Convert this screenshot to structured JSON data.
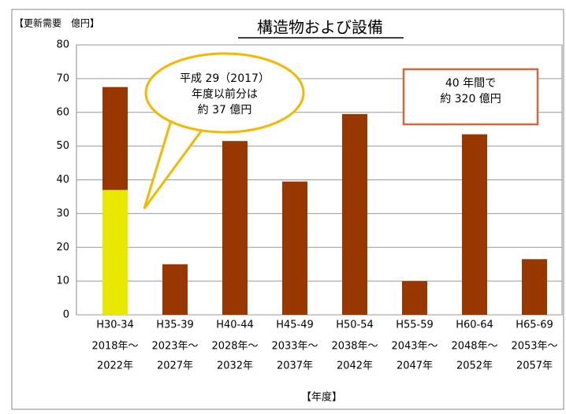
{
  "chart_data": {
    "type": "stacked_bar",
    "title": "構造物および設備",
    "y_axis_label": "【更新需要　億円】",
    "x_axis_label": "【年度】",
    "categories": [
      [
        "H30-34",
        "2018年～",
        "2022年"
      ],
      [
        "H35-39",
        "2023年～",
        "2027年"
      ],
      [
        "H40-44",
        "2028年～",
        "2032年"
      ],
      [
        "H45-49",
        "2033年～",
        "2037年"
      ],
      [
        "H50-54",
        "2038年～",
        "2042年"
      ],
      [
        "H55-59",
        "2043年～",
        "2047年"
      ],
      [
        "H60-64",
        "2048年～",
        "2052年"
      ],
      [
        "H65-69",
        "2053年～",
        "2057年"
      ]
    ],
    "series": [
      {
        "color": "#e8e800",
        "values": [
          37,
          null,
          null,
          null,
          null,
          null,
          null,
          null
        ]
      },
      {
        "color": "#983800",
        "values": [
          30.5,
          15,
          51.5,
          39.5,
          59.5,
          10,
          53.5,
          16.5
        ]
      }
    ],
    "ylim": [
      0,
      80
    ],
    "yticks": [
      0,
      10,
      20,
      30,
      40,
      50,
      60,
      70,
      80
    ],
    "grid": true,
    "annotations": [
      {
        "lines": [
          "平成 29（2017）",
          "年度以前分は",
          "約 37 億円"
        ]
      },
      {
        "lines": [
          "40 年間で",
          "約 320 億円"
        ]
      }
    ]
  }
}
